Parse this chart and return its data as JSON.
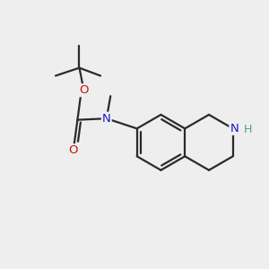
{
  "bg_color": "#eeeeee",
  "bond_color": "#2a2a2a",
  "bond_width": 1.6,
  "atom_colors": {
    "N": "#1a1acc",
    "O": "#cc1111",
    "H": "#5a9999"
  },
  "font_size": 9.5,
  "fig_size": [
    3.0,
    3.0
  ],
  "dpi": 100,
  "xlim": [
    0,
    10
  ],
  "ylim": [
    0,
    10
  ]
}
